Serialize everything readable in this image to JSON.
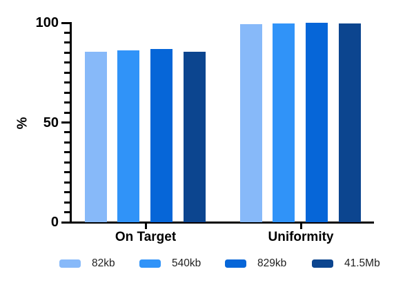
{
  "chart_data": {
    "type": "bar",
    "title": "",
    "ylabel": "%",
    "categories": [
      "On Target",
      "Uniformity"
    ],
    "series": [
      {
        "name": "82kb",
        "color": "#87b9f9",
        "values": [
          85.5,
          99.4
        ]
      },
      {
        "name": "540kb",
        "color": "#3093f8",
        "values": [
          86.3,
          99.8
        ]
      },
      {
        "name": "829kb",
        "color": "#0666d8",
        "values": [
          86.8,
          100
        ]
      },
      {
        "name": "41.5Mb",
        "color": "#0c458f",
        "values": [
          85.4,
          99.6
        ]
      }
    ],
    "ylim": [
      0,
      100
    ],
    "yticks_major": [
      0,
      50,
      100
    ],
    "minor_tick_step": 5,
    "grid": false,
    "legend_position": "bottom"
  }
}
